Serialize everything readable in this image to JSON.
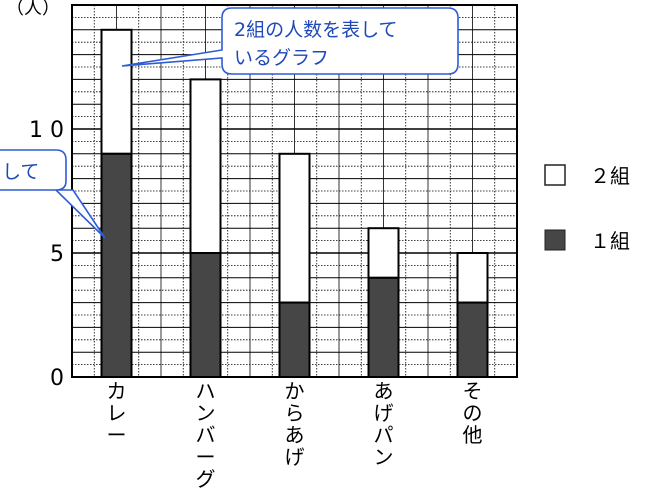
{
  "chart_data": {
    "type": "bar",
    "stacked": true,
    "categories": [
      "カレー",
      "ハンバーグ",
      "からあげ",
      "あげパン",
      "その他"
    ],
    "series": [
      {
        "name": "1組",
        "values": [
          9,
          5,
          3,
          4,
          3
        ],
        "color": "#464646"
      },
      {
        "name": "2組",
        "values": [
          5,
          7,
          6,
          2,
          2
        ],
        "color": "#ffffff"
      }
    ],
    "ylabel": "（人）",
    "ylim": [
      0,
      15
    ],
    "y_ticks": [
      {
        "value": 0,
        "label": "0"
      },
      {
        "value": 5,
        "label": "5"
      },
      {
        "value": 10,
        "label": "1 0"
      }
    ],
    "grid": true,
    "legend": "right",
    "annotations": [
      {
        "text_lines": [
          "2組の人数を表して",
          "いるグラフ"
        ],
        "points_to": "2組"
      },
      {
        "text_lines": [
          "して"
        ],
        "points_to": "1組"
      }
    ]
  },
  "legend": {
    "items": [
      {
        "label": "２組",
        "color": "#ffffff"
      },
      {
        "label": "１組",
        "color": "#464646"
      }
    ]
  },
  "colors": {
    "grid": "#000000",
    "callout_border": "#2e5bd6",
    "callout_text": "#1f49b8"
  }
}
